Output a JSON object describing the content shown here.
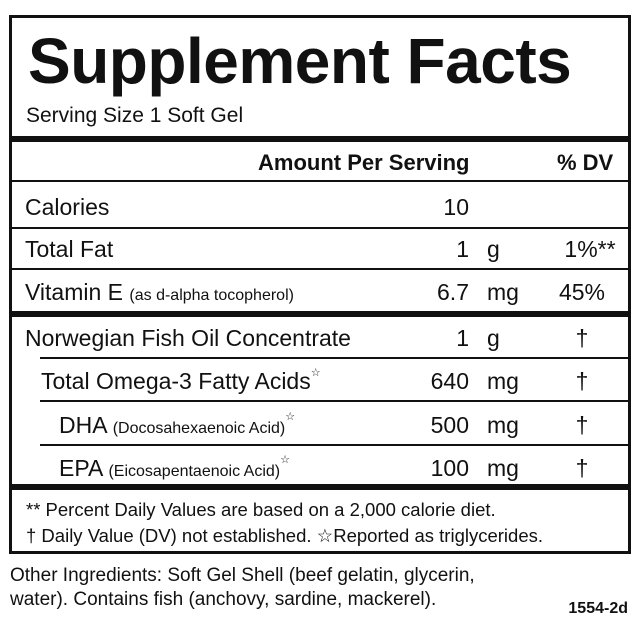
{
  "label": {
    "title": "Supplement Facts",
    "serving_size": "Serving Size 1 Soft Gel",
    "header": {
      "amount": "Amount Per Serving",
      "dv": "% DV"
    },
    "rows": [
      {
        "name": "Calories",
        "sub": "",
        "amount": "10",
        "unit": "",
        "dv": "",
        "star": ""
      },
      {
        "name": "Total Fat",
        "sub": "",
        "amount": "1",
        "unit": "g",
        "dv": "1%**",
        "star": ""
      },
      {
        "name": "Vitamin E",
        "sub": "(as d-alpha tocopherol)",
        "amount": "6.7",
        "unit": "mg",
        "dv": "45%",
        "star": ""
      },
      {
        "name": "Norwegian Fish Oil Concentrate",
        "sub": "",
        "amount": "1",
        "unit": "g",
        "dv": "†",
        "star": ""
      },
      {
        "name": "Total Omega-3 Fatty Acids",
        "sub": "",
        "amount": "640",
        "unit": "mg",
        "dv": "†",
        "star": "☆"
      },
      {
        "name": "DHA",
        "sub": "(Docosahexaenoic Acid)",
        "amount": "500",
        "unit": "mg",
        "dv": "†",
        "star": "☆"
      },
      {
        "name": "EPA",
        "sub": "(Eicosapentaenoic Acid)",
        "amount": "100",
        "unit": "mg",
        "dv": "†",
        "star": "☆"
      }
    ],
    "footnotes": [
      "** Percent Daily Values are based on a 2,000 calorie diet.",
      "† Daily Value (DV) not established.  ☆Reported as triglycerides."
    ]
  },
  "other_ingredients": [
    "Other Ingredients: Soft Gel Shell (beef gelatin, glycerin,",
    "water). Contains fish (anchovy, sardine, mackerel)."
  ],
  "product_code": "1554-2d"
}
